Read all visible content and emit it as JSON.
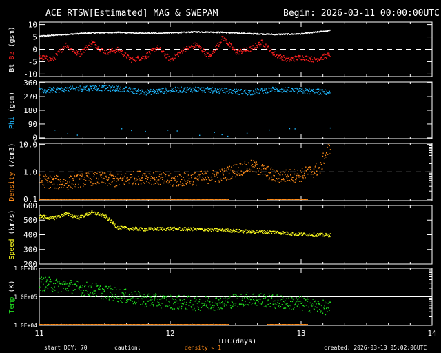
{
  "header": {
    "title": "ACE RTSW[Estimated] MAG & SWEPAM",
    "begin": "Begin: 2026-03-11 00:00:00UTC"
  },
  "footer": {
    "start_doy": "start DOY:  70",
    "caution": "caution:",
    "density_note": "density < 1",
    "created": "created: 2026-03-13 05:02:06UTC"
  },
  "colors": {
    "bt": "#ffffff",
    "bz": "#ff2020",
    "phi": "#20b8ff",
    "density": "#ff8c1a",
    "speed": "#ffff20",
    "temp": "#20e020",
    "caution": "#ff8c1a"
  },
  "chart_data": {
    "type": "scatter",
    "xlabel": "UTC(days)",
    "x_ticks": [
      "11",
      "12",
      "13",
      "14"
    ],
    "xlim": [
      11,
      14
    ],
    "panels": [
      {
        "name": "bt-bz",
        "ylabel_parts": [
          "Bt",
          "Bz",
          "(gsm)"
        ],
        "ylim": [
          -11,
          11
        ],
        "scale": "linear",
        "y_ticks": [
          "10",
          "5",
          "0",
          "-5",
          "-10"
        ],
        "y_tick_values": [
          10,
          5,
          0,
          -5,
          -10
        ],
        "ref_line": 0,
        "series": [
          {
            "name": "Bt",
            "x": [
              11.0,
              11.2,
              11.4,
              11.6,
              11.8,
              12.0,
              12.2,
              12.4,
              12.6,
              12.8,
              13.0,
              13.22
            ],
            "y": [
              5.5,
              6.2,
              6.8,
              7.0,
              6.6,
              6.8,
              7.2,
              7.0,
              6.5,
              6.2,
              6.4,
              7.8
            ]
          },
          {
            "name": "Bz",
            "x": [
              11.0,
              11.1,
              11.2,
              11.3,
              11.4,
              11.5,
              11.6,
              11.7,
              11.8,
              11.9,
              12.0,
              12.1,
              12.2,
              12.3,
              12.4,
              12.5,
              12.6,
              12.7,
              12.8,
              12.9,
              13.0,
              13.1,
              13.22
            ],
            "y": [
              -3,
              -4,
              2,
              -2,
              3,
              -1,
              0,
              -4,
              -3,
              1,
              -4,
              0,
              2,
              -3,
              5,
              -1,
              0,
              3,
              -2,
              -4,
              -3,
              -4,
              -2
            ]
          }
        ]
      },
      {
        "name": "phi",
        "ylabel_parts": [
          "Phi",
          "(gsm)"
        ],
        "ylim": [
          -5,
          365
        ],
        "scale": "linear",
        "y_ticks": [
          "360",
          "270",
          "180",
          "90",
          "0"
        ],
        "y_tick_values": [
          360,
          270,
          180,
          90,
          0
        ],
        "series": [
          {
            "name": "Phi",
            "x": [
              11.0,
              11.2,
              11.4,
              11.6,
              11.8,
              12.0,
              12.2,
              12.4,
              12.6,
              12.8,
              13.0,
              13.22
            ],
            "y": [
              310,
              320,
              330,
              325,
              300,
              315,
              320,
              310,
              300,
              320,
              310,
              300
            ]
          }
        ]
      },
      {
        "name": "density",
        "ylabel_parts": [
          "Density",
          "(/cm3)"
        ],
        "ylim": [
          0.09,
          11
        ],
        "scale": "log",
        "y_ticks": [
          "10.0",
          "1.0",
          "0.1"
        ],
        "y_tick_values": [
          10,
          1,
          0.1
        ],
        "ref_line": 1,
        "series": [
          {
            "name": "Density",
            "x": [
              11.0,
              11.2,
              11.4,
              11.6,
              11.8,
              12.0,
              12.2,
              12.4,
              12.55,
              12.62,
              12.8,
              13.0,
              13.15,
              13.22
            ],
            "y": [
              0.5,
              0.4,
              0.6,
              0.5,
              0.7,
              0.5,
              0.6,
              0.8,
              1.4,
              1.6,
              0.7,
              0.8,
              1.4,
              8.0
            ]
          }
        ]
      },
      {
        "name": "speed",
        "ylabel_parts": [
          "Speed",
          "(km/s)"
        ],
        "ylim": [
          200,
          600
        ],
        "scale": "linear",
        "y_ticks": [
          "600",
          "500",
          "400",
          "300",
          "200"
        ],
        "y_tick_values": [
          600,
          500,
          400,
          300,
          200
        ],
        "series": [
          {
            "name": "Speed",
            "x": [
              11.0,
              11.1,
              11.2,
              11.3,
              11.4,
              11.5,
              11.6,
              11.8,
              12.0,
              12.2,
              12.4,
              12.6,
              12.8,
              13.0,
              13.22
            ],
            "y": [
              530,
              515,
              545,
              520,
              555,
              530,
              450,
              440,
              445,
              440,
              435,
              425,
              420,
              405,
              400
            ]
          }
        ]
      },
      {
        "name": "temp",
        "ylabel_parts": [
          "Temp",
          "(K)"
        ],
        "ylim": [
          10000,
          1000000
        ],
        "scale": "log",
        "y_ticks": [
          "1.0E+06",
          "1.0E+05",
          "1.0E+04"
        ],
        "y_tick_values": [
          1000000,
          100000,
          10000
        ],
        "ref_line": 100000,
        "series": [
          {
            "name": "Temp",
            "x": [
              11.0,
              11.2,
              11.4,
              11.6,
              11.8,
              12.0,
              12.2,
              12.4,
              12.6,
              12.8,
              13.0,
              13.22
            ],
            "y": [
              300000,
              250000,
              180000,
              120000,
              80000,
              70000,
              60000,
              65000,
              90000,
              70000,
              60000,
              40000
            ]
          }
        ]
      }
    ]
  }
}
